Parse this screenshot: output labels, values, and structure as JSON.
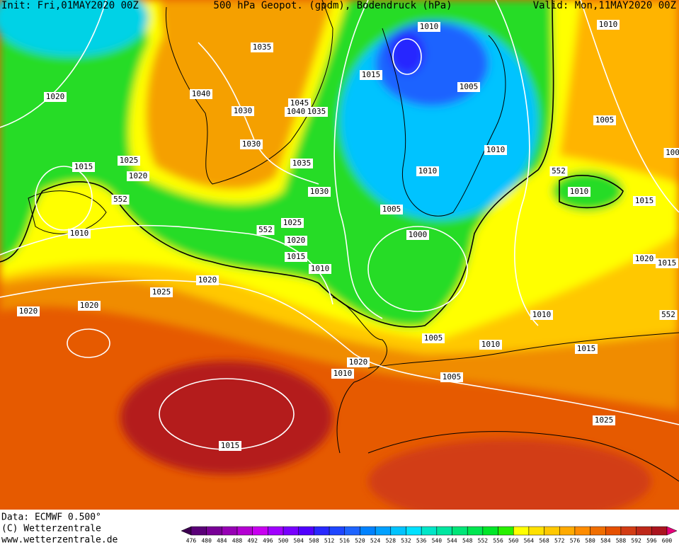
{
  "header": {
    "init": "Init: Fri,01MAY2020 00Z",
    "title": "500 hPa Geopot. (gpdm), Bodendruck (hPa)",
    "valid": "Valid: Mon,11MAY2020 00Z"
  },
  "map": {
    "isobar_labels": [
      "1010",
      "1010",
      "1035",
      "1040",
      "1045",
      "1040",
      "1035",
      "1030",
      "1015",
      "1005",
      "1020",
      "1005",
      "1030",
      "1010",
      "1025",
      "1015",
      "1020",
      "1035",
      "552",
      "1010",
      "100",
      "1030",
      "1010",
      "552",
      "1015",
      "1005",
      "1025",
      "552",
      "1010",
      "1000",
      "1020",
      "1015",
      "1020",
      "1015",
      "1010",
      "1020",
      "1025",
      "1020",
      "1020",
      "1010",
      "552",
      "1005",
      "1010",
      "1015",
      "1020",
      "1010",
      "1005",
      "1025",
      "1015"
    ]
  },
  "footer": {
    "data": "Data: ECMWF  0.500°",
    "copyright": "(C) Wetterzentrale",
    "url": "www.wetterzentrale.de"
  },
  "colorbar": {
    "labels": [
      476,
      480,
      484,
      488,
      492,
      496,
      500,
      504,
      508,
      512,
      516,
      520,
      524,
      528,
      532,
      536,
      540,
      544,
      548,
      552,
      556,
      560,
      564,
      568,
      572,
      576,
      580,
      584,
      588,
      592,
      596,
      600
    ],
    "colors": [
      "#3c0050",
      "#5a0078",
      "#780096",
      "#9600b4",
      "#b400d2",
      "#c800f0",
      "#a000ff",
      "#7800ff",
      "#5000ff",
      "#2828ff",
      "#1e46ff",
      "#1e64ff",
      "#0082ff",
      "#00a0ff",
      "#00c3ff",
      "#00e1ff",
      "#00e6c8",
      "#00e6a0",
      "#00e678",
      "#00e650",
      "#00e628",
      "#28f000",
      "#ffff00",
      "#ffe100",
      "#ffc800",
      "#ffaa00",
      "#ff8c00",
      "#f06e00",
      "#e65000",
      "#d23c14",
      "#be2819",
      "#aa141e",
      "#e6007a"
    ]
  }
}
